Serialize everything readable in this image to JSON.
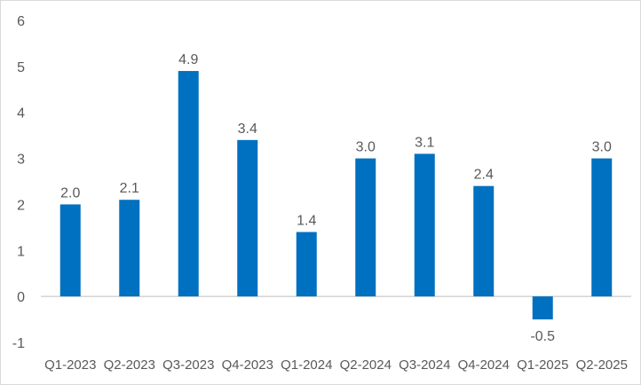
{
  "chart_data": {
    "type": "bar",
    "title": "",
    "xlabel": "",
    "ylabel": "",
    "categories": [
      "Q1-2023",
      "Q2-2023",
      "Q3-2023",
      "Q4-2023",
      "Q1-2024",
      "Q2-2024",
      "Q3-2024",
      "Q4-2024",
      "Q1-2025",
      "Q2-2025"
    ],
    "values": [
      2.0,
      2.1,
      4.9,
      3.4,
      1.4,
      3.0,
      3.1,
      2.4,
      -0.5,
      3.0
    ],
    "data_labels": [
      "2.0",
      "2.1",
      "4.9",
      "3.4",
      "1.4",
      "3.0",
      "3.1",
      "2.4",
      "-0.5",
      "3.0"
    ],
    "ylim": [
      -1,
      6
    ],
    "yticks": [
      -1,
      0,
      1,
      2,
      3,
      4,
      5,
      6
    ],
    "ytick_labels": [
      "-1",
      "0",
      "1",
      "2",
      "3",
      "4",
      "5",
      "6"
    ],
    "grid": false,
    "legend": "none",
    "colors": {
      "bar": "#0070C0",
      "axis": "#bfbfbf",
      "text": "#595959"
    }
  }
}
